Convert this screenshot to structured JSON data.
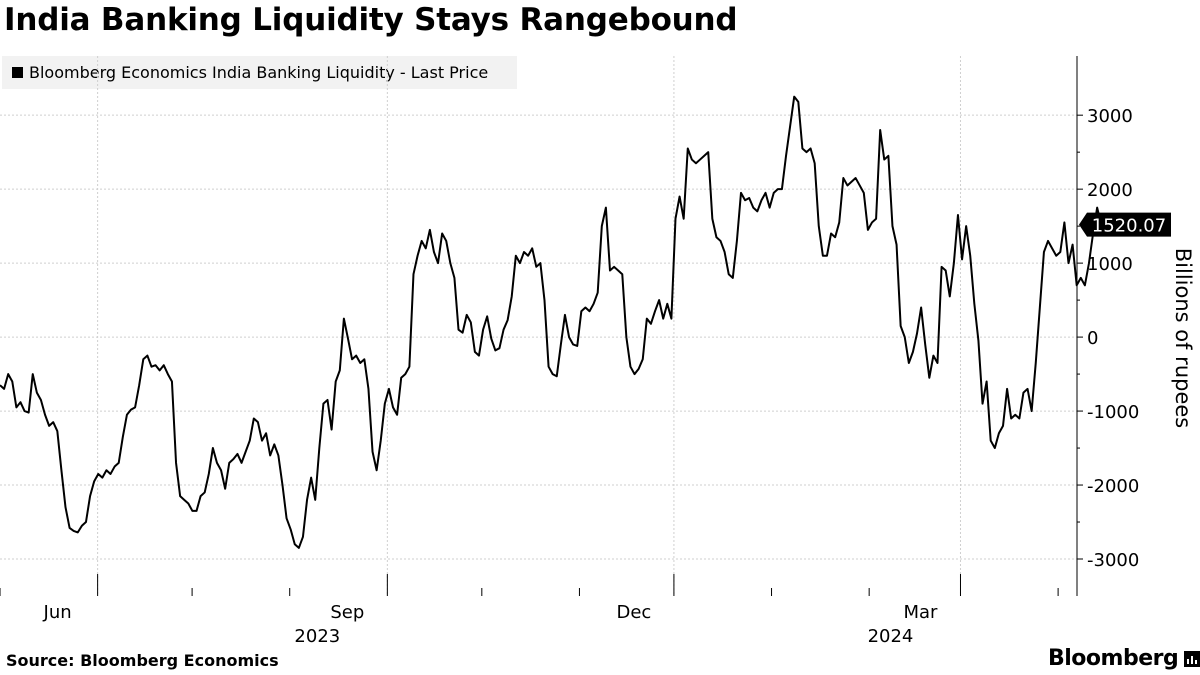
{
  "title": "India Banking Liquidity Stays Rangebound",
  "legend": {
    "label": "Bloomberg Economics India Banking Liquidity - Last Price"
  },
  "source": "Source: Bloomberg Economics",
  "brand": "Bloomberg",
  "colors": {
    "line": "#000000",
    "grid": "#cfcfcf",
    "legend_bg": "#f2f2f2",
    "last_price_bg": "#000000"
  },
  "chart_data": {
    "type": "line",
    "title": "India Banking Liquidity Stays Rangebound",
    "ylabel": "Billions of rupees",
    "ylim": [
      -3500,
      3800
    ],
    "yticks": [
      3000,
      2000,
      1000,
      0,
      -1000,
      -2000,
      -3000
    ],
    "ytick_labels": [
      "3000",
      "2000",
      "1000",
      "0",
      "-1000",
      "-2000",
      "-3000"
    ],
    "x_start": "2023-05-01",
    "xlim": [
      "2023-05-01",
      "2024-04-07"
    ],
    "xticks": [
      {
        "date": "2023-06-01",
        "label": "Jun",
        "year": ""
      },
      {
        "date": "2023-09-01",
        "label": "Sep",
        "year": "2023"
      },
      {
        "date": "2023-12-01",
        "label": "Dec",
        "year": ""
      },
      {
        "date": "2024-03-01",
        "label": "Mar",
        "year": "2024"
      }
    ],
    "grid": true,
    "legend_position": "top-left",
    "last_price": {
      "value": 1520.07,
      "label": "1520.07"
    },
    "series": [
      {
        "name": "Bloomberg Economics India Banking Liquidity - Last Price",
        "points": [
          [
            0,
            -650
          ],
          [
            1,
            -700
          ],
          [
            2,
            -500
          ],
          [
            3,
            -600
          ],
          [
            4,
            -950
          ],
          [
            5,
            -880
          ],
          [
            6,
            -1000
          ],
          [
            7,
            -1020
          ],
          [
            8,
            -500
          ],
          [
            9,
            -750
          ],
          [
            10,
            -850
          ],
          [
            11,
            -1050
          ],
          [
            12,
            -1200
          ],
          [
            13,
            -1150
          ],
          [
            14,
            -1270
          ],
          [
            15,
            -1800
          ],
          [
            16,
            -2300
          ],
          [
            17,
            -2580
          ],
          [
            18,
            -2620
          ],
          [
            19,
            -2640
          ],
          [
            20,
            -2550
          ],
          [
            21,
            -2500
          ],
          [
            22,
            -2150
          ],
          [
            23,
            -1950
          ],
          [
            24,
            -1850
          ],
          [
            25,
            -1900
          ],
          [
            26,
            -1800
          ],
          [
            27,
            -1850
          ],
          [
            28,
            -1750
          ],
          [
            29,
            -1700
          ],
          [
            30,
            -1350
          ],
          [
            31,
            -1050
          ],
          [
            32,
            -980
          ],
          [
            33,
            -950
          ],
          [
            34,
            -650
          ],
          [
            35,
            -300
          ],
          [
            36,
            -250
          ],
          [
            37,
            -400
          ],
          [
            38,
            -380
          ],
          [
            39,
            -450
          ],
          [
            40,
            -380
          ],
          [
            41,
            -500
          ],
          [
            42,
            -600
          ],
          [
            43,
            -1700
          ],
          [
            44,
            -2150
          ],
          [
            45,
            -2200
          ],
          [
            46,
            -2250
          ],
          [
            47,
            -2350
          ],
          [
            48,
            -2350
          ],
          [
            49,
            -2150
          ],
          [
            50,
            -2100
          ],
          [
            51,
            -1850
          ],
          [
            52,
            -1500
          ],
          [
            53,
            -1700
          ],
          [
            54,
            -1800
          ],
          [
            55,
            -2050
          ],
          [
            56,
            -1700
          ],
          [
            57,
            -1650
          ],
          [
            58,
            -1580
          ],
          [
            59,
            -1700
          ],
          [
            60,
            -1550
          ],
          [
            61,
            -1400
          ],
          [
            62,
            -1100
          ],
          [
            63,
            -1150
          ],
          [
            64,
            -1400
          ],
          [
            65,
            -1300
          ],
          [
            66,
            -1600
          ],
          [
            67,
            -1450
          ],
          [
            68,
            -1600
          ],
          [
            69,
            -2000
          ],
          [
            70,
            -2450
          ],
          [
            71,
            -2600
          ],
          [
            72,
            -2800
          ],
          [
            73,
            -2850
          ],
          [
            74,
            -2700
          ],
          [
            75,
            -2200
          ],
          [
            76,
            -1900
          ],
          [
            77,
            -2200
          ],
          [
            78,
            -1500
          ],
          [
            79,
            -900
          ],
          [
            80,
            -850
          ],
          [
            81,
            -1250
          ],
          [
            82,
            -600
          ],
          [
            83,
            -450
          ],
          [
            84,
            250
          ],
          [
            85,
            -20
          ],
          [
            86,
            -300
          ],
          [
            87,
            -250
          ],
          [
            88,
            -350
          ],
          [
            89,
            -300
          ],
          [
            90,
            -700
          ],
          [
            91,
            -1550
          ],
          [
            92,
            -1800
          ],
          [
            93,
            -1400
          ],
          [
            94,
            -900
          ],
          [
            95,
            -700
          ],
          [
            96,
            -950
          ],
          [
            97,
            -1050
          ],
          [
            98,
            -550
          ],
          [
            99,
            -500
          ],
          [
            100,
            -400
          ],
          [
            101,
            850
          ],
          [
            102,
            1100
          ],
          [
            103,
            1300
          ],
          [
            104,
            1200
          ],
          [
            105,
            1450
          ],
          [
            106,
            1150
          ],
          [
            107,
            1000
          ],
          [
            108,
            1400
          ],
          [
            109,
            1300
          ],
          [
            110,
            1000
          ],
          [
            111,
            800
          ],
          [
            112,
            100
          ],
          [
            113,
            60
          ],
          [
            114,
            300
          ],
          [
            115,
            200
          ],
          [
            116,
            -200
          ],
          [
            117,
            -250
          ],
          [
            118,
            100
          ],
          [
            119,
            280
          ],
          [
            120,
            -20
          ],
          [
            121,
            -180
          ],
          [
            122,
            -150
          ],
          [
            123,
            100
          ],
          [
            124,
            230
          ],
          [
            125,
            550
          ],
          [
            126,
            1100
          ],
          [
            127,
            1000
          ],
          [
            128,
            1150
          ],
          [
            129,
            1100
          ],
          [
            130,
            1200
          ],
          [
            131,
            950
          ],
          [
            132,
            1000
          ],
          [
            133,
            500
          ],
          [
            134,
            -400
          ],
          [
            135,
            -500
          ],
          [
            136,
            -530
          ],
          [
            137,
            -100
          ],
          [
            138,
            300
          ],
          [
            139,
            0
          ],
          [
            140,
            -100
          ],
          [
            141,
            -120
          ],
          [
            142,
            350
          ],
          [
            143,
            400
          ],
          [
            144,
            350
          ],
          [
            145,
            450
          ],
          [
            146,
            600
          ],
          [
            147,
            1500
          ],
          [
            148,
            1750
          ],
          [
            149,
            900
          ],
          [
            150,
            950
          ],
          [
            151,
            900
          ],
          [
            152,
            850
          ],
          [
            153,
            0
          ],
          [
            154,
            -400
          ],
          [
            155,
            -500
          ],
          [
            156,
            -430
          ],
          [
            157,
            -300
          ],
          [
            158,
            250
          ],
          [
            159,
            180
          ],
          [
            160,
            350
          ],
          [
            161,
            500
          ],
          [
            162,
            250
          ],
          [
            163,
            450
          ],
          [
            164,
            250
          ],
          [
            165,
            1600
          ],
          [
            166,
            1900
          ],
          [
            167,
            1600
          ],
          [
            168,
            2550
          ],
          [
            169,
            2400
          ],
          [
            170,
            2350
          ],
          [
            171,
            2400
          ],
          [
            172,
            2450
          ],
          [
            173,
            2500
          ],
          [
            174,
            1600
          ],
          [
            175,
            1350
          ],
          [
            176,
            1300
          ],
          [
            177,
            1150
          ],
          [
            178,
            850
          ],
          [
            179,
            800
          ],
          [
            180,
            1300
          ],
          [
            181,
            1950
          ],
          [
            182,
            1850
          ],
          [
            183,
            1880
          ],
          [
            184,
            1750
          ],
          [
            185,
            1700
          ],
          [
            186,
            1850
          ],
          [
            187,
            1950
          ],
          [
            188,
            1750
          ],
          [
            189,
            1950
          ],
          [
            190,
            2000
          ],
          [
            191,
            2000
          ],
          [
            192,
            2450
          ],
          [
            193,
            2850
          ],
          [
            194,
            3250
          ],
          [
            195,
            3180
          ],
          [
            196,
            2550
          ],
          [
            197,
            2500
          ],
          [
            198,
            2550
          ],
          [
            199,
            2350
          ],
          [
            200,
            1500
          ],
          [
            201,
            1100
          ],
          [
            202,
            1100
          ],
          [
            203,
            1400
          ],
          [
            204,
            1350
          ],
          [
            205,
            1550
          ],
          [
            206,
            2150
          ],
          [
            207,
            2050
          ],
          [
            208,
            2100
          ],
          [
            209,
            2150
          ],
          [
            210,
            2050
          ],
          [
            211,
            1950
          ],
          [
            212,
            1450
          ],
          [
            213,
            1550
          ],
          [
            214,
            1600
          ],
          [
            215,
            2800
          ],
          [
            216,
            2400
          ],
          [
            217,
            2450
          ],
          [
            218,
            1500
          ],
          [
            219,
            1250
          ],
          [
            220,
            150
          ],
          [
            221,
            0
          ],
          [
            222,
            -350
          ],
          [
            223,
            -200
          ],
          [
            224,
            50
          ],
          [
            225,
            400
          ],
          [
            226,
            -100
          ],
          [
            227,
            -550
          ],
          [
            228,
            -250
          ],
          [
            229,
            -350
          ],
          [
            230,
            950
          ],
          [
            231,
            900
          ],
          [
            232,
            550
          ],
          [
            233,
            1000
          ],
          [
            234,
            1650
          ],
          [
            235,
            1050
          ],
          [
            236,
            1500
          ],
          [
            237,
            1100
          ],
          [
            238,
            450
          ],
          [
            239,
            -50
          ],
          [
            240,
            -900
          ],
          [
            241,
            -600
          ],
          [
            242,
            -1400
          ],
          [
            243,
            -1500
          ],
          [
            244,
            -1300
          ],
          [
            245,
            -1200
          ],
          [
            246,
            -700
          ],
          [
            247,
            -1100
          ],
          [
            248,
            -1050
          ],
          [
            249,
            -1100
          ],
          [
            250,
            -750
          ],
          [
            251,
            -700
          ],
          [
            252,
            -1000
          ],
          [
            253,
            -350
          ],
          [
            254,
            400
          ],
          [
            255,
            1150
          ],
          [
            256,
            1300
          ],
          [
            257,
            1200
          ],
          [
            258,
            1100
          ],
          [
            259,
            1150
          ],
          [
            260,
            1550
          ],
          [
            261,
            1000
          ],
          [
            262,
            1250
          ],
          [
            263,
            700
          ],
          [
            264,
            800
          ],
          [
            265,
            700
          ],
          [
            266,
            1000
          ],
          [
            267,
            1400
          ],
          [
            268,
            1750
          ],
          [
            269,
            1520
          ]
        ]
      }
    ]
  }
}
